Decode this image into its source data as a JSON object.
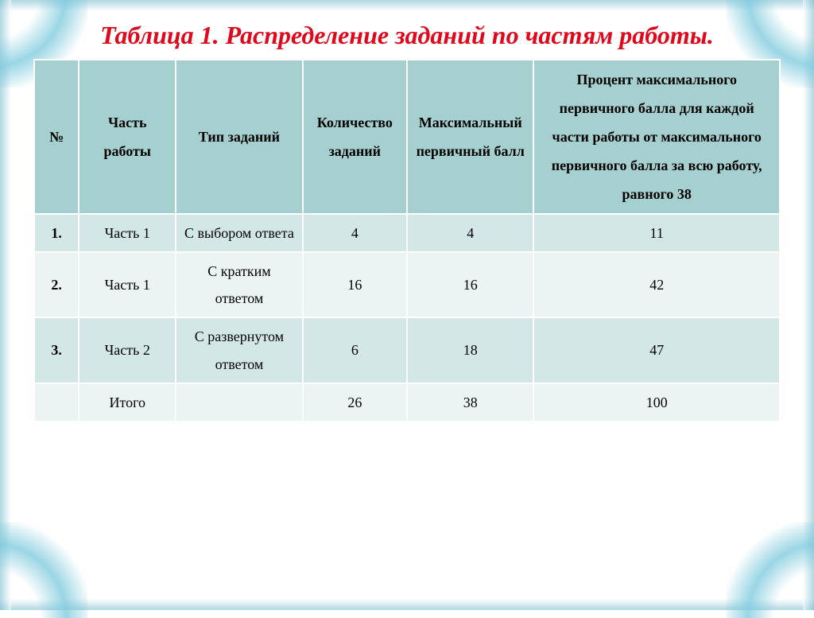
{
  "title": "Таблица 1. Распределение заданий по частям работы.",
  "title_color": "#e2061b",
  "title_fontsize": 32,
  "table": {
    "header_bg": "#a6cfcf",
    "row_odd_bg": "#d4e7e7",
    "row_even_bg": "#ebf3f3",
    "text_color": "#000000",
    "header_fontsize": 18,
    "body_fontsize": 18,
    "col_widths_pct": [
      6,
      13,
      17,
      14,
      17,
      33
    ],
    "columns": [
      "№",
      "Часть работы",
      "Тип заданий",
      "Количество заданий",
      "Максимальный первичный балл",
      "Процент максимального первичного балла для каждой части работы от максимального первичного балла за всю работу, равного 38"
    ],
    "rows": [
      [
        "1.",
        "Часть 1",
        "С выбором ответа",
        "4",
        "4",
        "11"
      ],
      [
        "2.",
        "Часть 1",
        "С кратким ответом",
        "16",
        "16",
        "42"
      ],
      [
        "3.",
        "Часть 2",
        "С развернутом ответом",
        "6",
        "18",
        "47"
      ],
      [
        "",
        "Итого",
        "",
        "26",
        "38",
        "100"
      ]
    ]
  }
}
